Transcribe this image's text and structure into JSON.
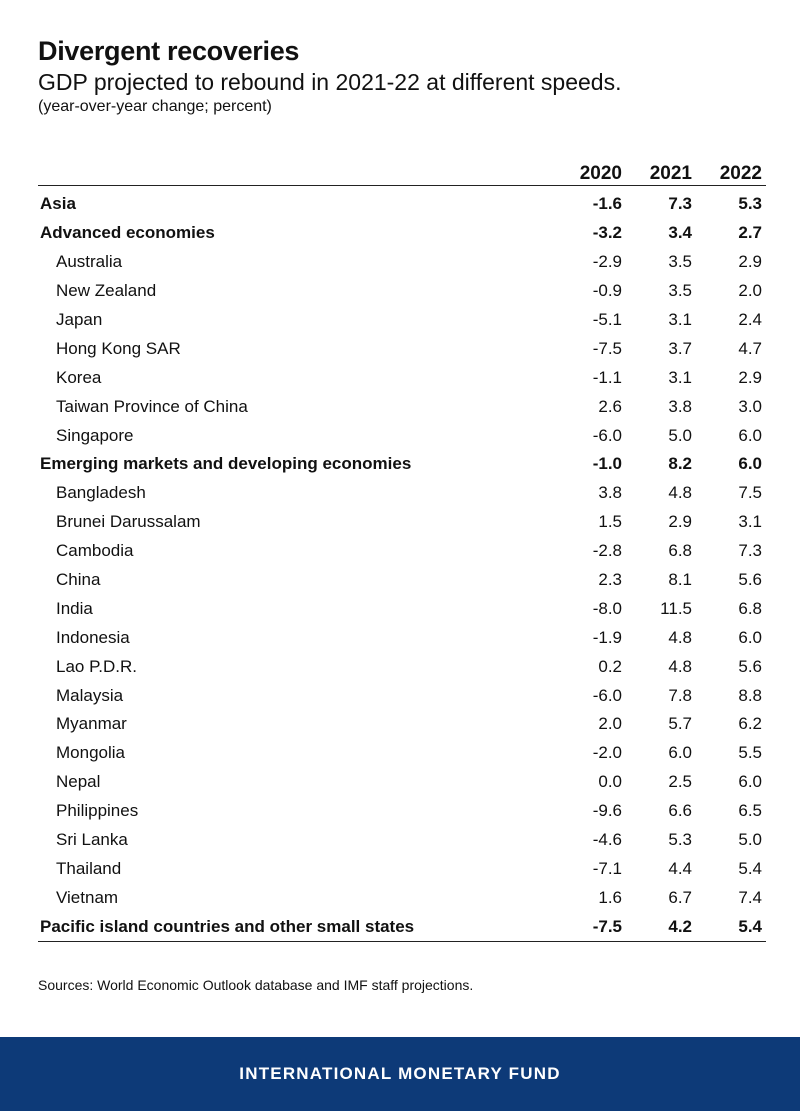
{
  "header": {
    "title": "Divergent recoveries",
    "subtitle": "GDP projected to rebound in 2021-22 at different speeds.",
    "unit": "(year-over-year change; percent)"
  },
  "chart_data": {
    "type": "table",
    "columns": [
      "2020",
      "2021",
      "2022"
    ],
    "rows": [
      {
        "label": "Asia",
        "values": [
          "-1.6",
          "7.3",
          "5.3"
        ],
        "level": "group"
      },
      {
        "label": "Advanced economies",
        "values": [
          "-3.2",
          "3.4",
          "2.7"
        ],
        "level": "group"
      },
      {
        "label": "Australia",
        "values": [
          "-2.9",
          "3.5",
          "2.9"
        ],
        "level": "item"
      },
      {
        "label": "New Zealand",
        "values": [
          "-0.9",
          "3.5",
          "2.0"
        ],
        "level": "item"
      },
      {
        "label": "Japan",
        "values": [
          "-5.1",
          "3.1",
          "2.4"
        ],
        "level": "item"
      },
      {
        "label": "Hong Kong SAR",
        "values": [
          "-7.5",
          "3.7",
          "4.7"
        ],
        "level": "item"
      },
      {
        "label": "Korea",
        "values": [
          "-1.1",
          "3.1",
          "2.9"
        ],
        "level": "item"
      },
      {
        "label": "Taiwan Province of China",
        "values": [
          "2.6",
          "3.8",
          "3.0"
        ],
        "level": "item"
      },
      {
        "label": "Singapore",
        "values": [
          "-6.0",
          "5.0",
          "6.0"
        ],
        "level": "item"
      },
      {
        "label": "Emerging markets and developing economies",
        "values": [
          "-1.0",
          "8.2",
          "6.0"
        ],
        "level": "group"
      },
      {
        "label": "Bangladesh",
        "values": [
          "3.8",
          "4.8",
          "7.5"
        ],
        "level": "item"
      },
      {
        "label": "Brunei Darussalam",
        "values": [
          "1.5",
          "2.9",
          "3.1"
        ],
        "level": "item"
      },
      {
        "label": "Cambodia",
        "values": [
          "-2.8",
          "6.8",
          "7.3"
        ],
        "level": "item"
      },
      {
        "label": "China",
        "values": [
          "2.3",
          "8.1",
          "5.6"
        ],
        "level": "item"
      },
      {
        "label": "India",
        "values": [
          "-8.0",
          "11.5",
          "6.8"
        ],
        "level": "item"
      },
      {
        "label": "Indonesia",
        "values": [
          "-1.9",
          "4.8",
          "6.0"
        ],
        "level": "item"
      },
      {
        "label": "Lao P.D.R.",
        "values": [
          "0.2",
          "4.8",
          "5.6"
        ],
        "level": "item"
      },
      {
        "label": "Malaysia",
        "values": [
          "-6.0",
          "7.8",
          "8.8"
        ],
        "level": "item"
      },
      {
        "label": "Myanmar",
        "values": [
          "2.0",
          "5.7",
          "6.2"
        ],
        "level": "item"
      },
      {
        "label": "Mongolia",
        "values": [
          "-2.0",
          "6.0",
          "5.5"
        ],
        "level": "item"
      },
      {
        "label": "Nepal",
        "values": [
          "0.0",
          "2.5",
          "6.0"
        ],
        "level": "item"
      },
      {
        "label": "Philippines",
        "values": [
          "-9.6",
          "6.6",
          "6.5"
        ],
        "level": "item"
      },
      {
        "label": "Sri Lanka",
        "values": [
          "-4.6",
          "5.3",
          "5.0"
        ],
        "level": "item"
      },
      {
        "label": "Thailand",
        "values": [
          "-7.1",
          "4.4",
          "5.4"
        ],
        "level": "item"
      },
      {
        "label": "Vietnam",
        "values": [
          "1.6",
          "6.7",
          "7.4"
        ],
        "level": "item"
      },
      {
        "label": "Pacific island countries and other small states",
        "values": [
          "-7.5",
          "4.2",
          "5.4"
        ],
        "level": "group"
      }
    ]
  },
  "source": "Sources: World Economic Outlook database and IMF staff projections.",
  "footer": {
    "org": "INTERNATIONAL MONETARY FUND",
    "background": "#0d3a78"
  }
}
